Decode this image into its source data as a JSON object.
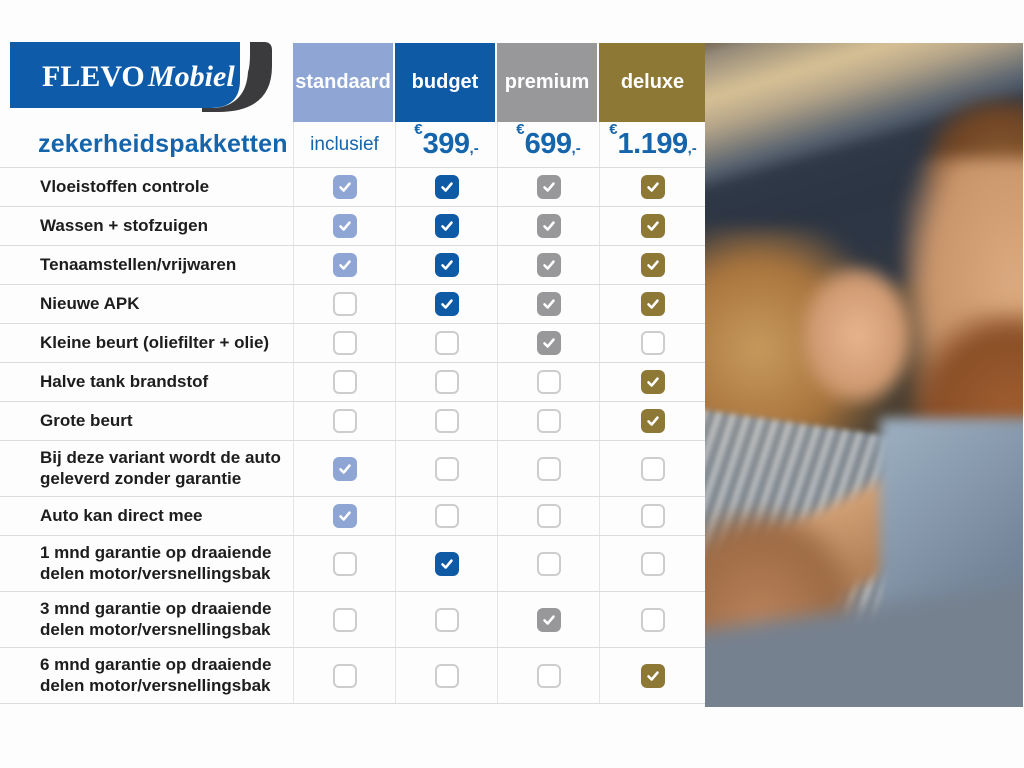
{
  "logo": {
    "brand": "FLEVO",
    "brand_suffix": "Mobiel",
    "banner_color": "#0E5CA9",
    "stripe_color": "#3B3B3D"
  },
  "title": "zekerheidspakketten",
  "accent_text_color": "#1565AD",
  "packages": [
    {
      "label": "standaard",
      "color": "#8FA6D4",
      "price_text": "inclusief"
    },
    {
      "label": "budget",
      "color": "#0F5AA5",
      "currency": "€",
      "amount": "399",
      "suffix": ",-"
    },
    {
      "label": "premium",
      "color": "#98989B",
      "currency": "€",
      "amount": "699",
      "suffix": ",-"
    },
    {
      "label": "deluxe",
      "color": "#8D7836",
      "currency": "€",
      "amount": "1.199",
      "suffix": ",-"
    }
  ],
  "features": [
    {
      "label": "Vloeistoffen controle",
      "tall": false,
      "checks": [
        true,
        true,
        true,
        true
      ]
    },
    {
      "label": "Wassen + stofzuigen",
      "tall": false,
      "checks": [
        true,
        true,
        true,
        true
      ]
    },
    {
      "label": "Tenaamstellen/vrijwaren",
      "tall": false,
      "checks": [
        true,
        true,
        true,
        true
      ]
    },
    {
      "label": "Nieuwe APK",
      "tall": false,
      "checks": [
        false,
        true,
        true,
        true
      ]
    },
    {
      "label": "Kleine beurt (oliefilter + olie)",
      "tall": false,
      "checks": [
        false,
        false,
        true,
        false
      ]
    },
    {
      "label": "Halve tank brandstof",
      "tall": false,
      "checks": [
        false,
        false,
        false,
        true
      ]
    },
    {
      "label": "Grote beurt",
      "tall": false,
      "checks": [
        false,
        false,
        false,
        true
      ]
    },
    {
      "label": "Bij deze variant wordt de auto geleverd zonder garantie",
      "tall": true,
      "checks": [
        true,
        false,
        false,
        false
      ]
    },
    {
      "label": "Auto kan direct mee",
      "tall": false,
      "checks": [
        true,
        false,
        false,
        false
      ]
    },
    {
      "label": "1 mnd garantie op draaiende delen motor/versnellingsbak",
      "tall": true,
      "checks": [
        false,
        true,
        false,
        false
      ]
    },
    {
      "label": "3 mnd garantie op draaiende delen motor/versnellingsbak",
      "tall": true,
      "checks": [
        false,
        false,
        true,
        false
      ]
    },
    {
      "label": "6 mnd garantie op draaiende delen motor/versnellingsbak",
      "tall": true,
      "checks": [
        false,
        false,
        false,
        true
      ]
    }
  ],
  "photo": {
    "description": "Smiling couple inside a car; woman with wavy blonde hair in striped shirt touching bearded man's chin"
  },
  "chart_data": {
    "type": "table",
    "title": "zekerheidspakketten",
    "categories": [
      "standaard",
      "budget",
      "premium",
      "deluxe"
    ],
    "prices": [
      "inclusief",
      "€399,-",
      "€699,-",
      "€1.199,-"
    ],
    "rows": [
      {
        "feature": "Vloeistoffen controle",
        "included": [
          true,
          true,
          true,
          true
        ]
      },
      {
        "feature": "Wassen + stofzuigen",
        "included": [
          true,
          true,
          true,
          true
        ]
      },
      {
        "feature": "Tenaamstellen/vrijwaren",
        "included": [
          true,
          true,
          true,
          true
        ]
      },
      {
        "feature": "Nieuwe APK",
        "included": [
          false,
          true,
          true,
          true
        ]
      },
      {
        "feature": "Kleine beurt (oliefilter + olie)",
        "included": [
          false,
          false,
          true,
          false
        ]
      },
      {
        "feature": "Halve tank brandstof",
        "included": [
          false,
          false,
          false,
          true
        ]
      },
      {
        "feature": "Grote beurt",
        "included": [
          false,
          false,
          false,
          true
        ]
      },
      {
        "feature": "Bij deze variant wordt de auto geleverd zonder garantie",
        "included": [
          true,
          false,
          false,
          false
        ]
      },
      {
        "feature": "Auto kan direct mee",
        "included": [
          true,
          false,
          false,
          false
        ]
      },
      {
        "feature": "1 mnd garantie op draaiende delen motor/versnellingsbak",
        "included": [
          false,
          true,
          false,
          false
        ]
      },
      {
        "feature": "3 mnd garantie op draaiende delen motor/versnellingsbak",
        "included": [
          false,
          false,
          true,
          false
        ]
      },
      {
        "feature": "6 mnd garantie op draaiende delen motor/versnellingsbak",
        "included": [
          false,
          false,
          false,
          true
        ]
      }
    ],
    "legend_position": "top",
    "grid": true
  }
}
